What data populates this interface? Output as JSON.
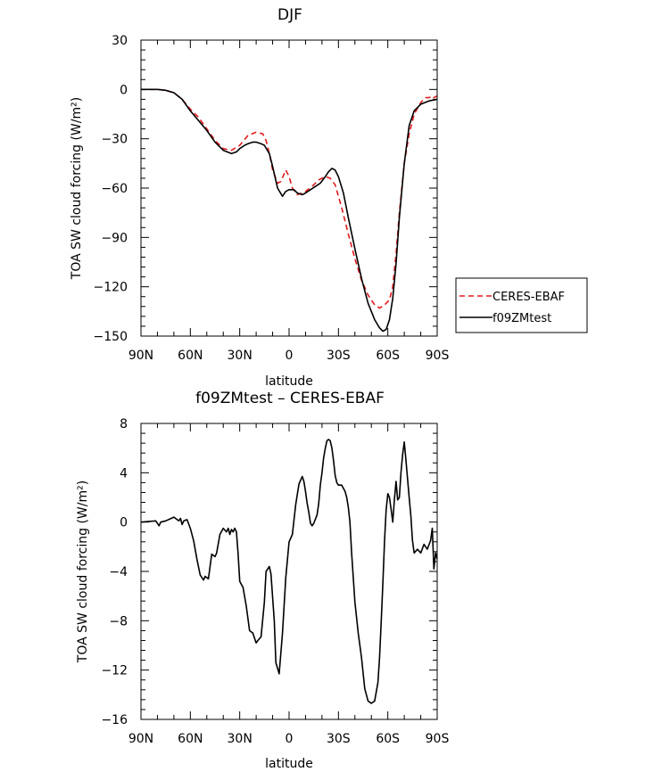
{
  "chart_data": [
    {
      "type": "line",
      "title": "DJF",
      "xlabel": "latitude",
      "ylabel": "TOA SW cloud forcing (W/m²)",
      "ylim": [
        -150,
        30
      ],
      "yticks": [
        30,
        0,
        -30,
        -60,
        -90,
        -120,
        -150
      ],
      "ytick_labels": [
        "30",
        "0",
        "−30",
        "−60",
        "−90",
        "−120",
        "−150"
      ],
      "xlim": [
        90,
        -90
      ],
      "xticks": [
        90,
        60,
        30,
        0,
        -30,
        -60,
        -90
      ],
      "xtick_labels": [
        "90N",
        "60N",
        "30N",
        "0",
        "30S",
        "60S",
        "90S"
      ],
      "legend": "right",
      "series": [
        {
          "name": "CERES-EBAF",
          "color": "#e31a1c",
          "dash": "dashed",
          "x": [
            90,
            80,
            75,
            70,
            65,
            60,
            55,
            50,
            45,
            40,
            35,
            30,
            25,
            20,
            16,
            14,
            12,
            10,
            7,
            5,
            2,
            0,
            -2,
            -5,
            -8,
            -10,
            -14,
            -18,
            -22,
            -25,
            -28,
            -32,
            -36,
            -40,
            -44,
            -48,
            -52,
            -55,
            -58,
            -61,
            -63,
            -65,
            -67,
            -70,
            -73,
            -76,
            -80,
            -83,
            -85,
            -87,
            -88,
            -90
          ],
          "y": [
            0,
            0,
            -0.5,
            -2,
            -6,
            -12,
            -17,
            -24,
            -31,
            -36,
            -37,
            -34,
            -28,
            -26,
            -27,
            -31,
            -39,
            -49,
            -57,
            -56,
            -49,
            -53,
            -60,
            -64,
            -63,
            -62,
            -59,
            -55,
            -53,
            -54,
            -58,
            -72,
            -88,
            -103,
            -116,
            -125,
            -131,
            -133,
            -131,
            -128,
            -120,
            -100,
            -75,
            -45,
            -27,
            -15,
            -8,
            -5,
            -5,
            -4,
            -5,
            -4
          ]
        },
        {
          "name": "f09ZMtest",
          "color": "#000000",
          "dash": "solid",
          "x": [
            90,
            80,
            75,
            70,
            65,
            60,
            55,
            50,
            45,
            40,
            35,
            32,
            30,
            27,
            25,
            22,
            20,
            17,
            15,
            12,
            10,
            7,
            4,
            2,
            0,
            -3,
            -5,
            -8,
            -10,
            -13,
            -16,
            -19,
            -22,
            -24,
            -26,
            -28,
            -30,
            -33,
            -36,
            -40,
            -44,
            -48,
            -52,
            -55,
            -57,
            -59,
            -61,
            -63,
            -65,
            -67,
            -70,
            -73,
            -76,
            -80,
            -85,
            -90
          ],
          "y": [
            0,
            0,
            -0.5,
            -2,
            -6,
            -13,
            -19,
            -25,
            -32,
            -37,
            -39,
            -38,
            -36,
            -34,
            -33,
            -32,
            -32,
            -33,
            -34,
            -39,
            -47,
            -60,
            -65,
            -62,
            -61,
            -61,
            -63,
            -64,
            -63,
            -61,
            -59,
            -57,
            -53,
            -50,
            -48,
            -49,
            -53,
            -63,
            -78,
            -97,
            -115,
            -130,
            -140,
            -145,
            -147,
            -146,
            -140,
            -127,
            -106,
            -78,
            -45,
            -22,
            -13,
            -9,
            -7,
            -6
          ]
        }
      ]
    },
    {
      "type": "line",
      "title": "f09ZMtest – CERES-EBAF",
      "xlabel": "latitude",
      "ylabel": "TOA SW cloud forcing (W/m²)",
      "ylim": [
        -16,
        8
      ],
      "yticks": [
        8,
        4,
        0,
        -4,
        -8,
        -12,
        -16
      ],
      "ytick_labels": [
        "8",
        "4",
        "0",
        "−4",
        "−8",
        "−12",
        "−16"
      ],
      "xlim": [
        90,
        -90
      ],
      "xticks": [
        90,
        60,
        30,
        0,
        -30,
        -60,
        -90
      ],
      "xtick_labels": [
        "90N",
        "60N",
        "30N",
        "0",
        "30S",
        "60S",
        "90S"
      ],
      "series": [
        {
          "name": "f09ZMtest – CERES-EBAF",
          "color": "#000000",
          "dash": "solid",
          "x": [
            90,
            81,
            79,
            78,
            75,
            70,
            67,
            66,
            65,
            64,
            62,
            60,
            58,
            56,
            54,
            52,
            51,
            49,
            47,
            45,
            44,
            42,
            40,
            38,
            37,
            36,
            35,
            34,
            33,
            32,
            31,
            30,
            28,
            26,
            24,
            22,
            20,
            19,
            17,
            15,
            14,
            12,
            11,
            9,
            8,
            6,
            4,
            2,
            0,
            -2,
            -4,
            -6,
            -8,
            -9,
            -10,
            -11,
            -12,
            -13,
            -14,
            -15,
            -17,
            -18,
            -19,
            -20,
            -21,
            -22,
            -23,
            -24,
            -25,
            -26,
            -27,
            -28,
            -29,
            -30,
            -32,
            -34,
            -35,
            -36,
            -37,
            -38,
            -40,
            -42,
            -44,
            -46,
            -48,
            -50,
            -52,
            -54,
            -55,
            -56,
            -57,
            -58,
            -59,
            -60,
            -61,
            -62,
            -63,
            -64,
            -65,
            -66,
            -67,
            -68,
            -69,
            -70,
            -71,
            -72,
            -73,
            -74,
            -75,
            -76,
            -78,
            -80,
            -82,
            -84,
            -86,
            -87,
            -88,
            -89,
            -90
          ],
          "y": [
            0,
            0.1,
            -0.3,
            0,
            0.1,
            0.4,
            0.1,
            0.3,
            -0.2,
            0.1,
            0.2,
            -0.5,
            -1.5,
            -3,
            -4.3,
            -4.7,
            -4.4,
            -4.6,
            -2.6,
            -2.8,
            -2.5,
            -1,
            -0.5,
            -0.8,
            -0.5,
            -1,
            -0.6,
            -0.8,
            -0.5,
            -0.8,
            -2.5,
            -4.8,
            -5.3,
            -6.8,
            -8.8,
            -9,
            -9.8,
            -9.6,
            -9.3,
            -6.5,
            -4,
            -3.6,
            -4.2,
            -8,
            -11.4,
            -12.3,
            -9,
            -4.5,
            -1.6,
            -1,
            1.4,
            3.1,
            3.7,
            3.3,
            2.5,
            1.5,
            0.8,
            -0.1,
            -0.3,
            -0.1,
            0.6,
            1.5,
            3,
            4,
            5.2,
            6,
            6.6,
            6.7,
            6.6,
            6,
            5,
            3.8,
            3.2,
            3,
            3,
            2.5,
            2,
            1.2,
            0,
            -2.5,
            -6.5,
            -9,
            -11,
            -13.5,
            -14.5,
            -14.7,
            -14.5,
            -13,
            -11,
            -8,
            -5,
            -1.5,
            1,
            2.3,
            2,
            1,
            0,
            1.8,
            3.3,
            1.8,
            2,
            4,
            5.5,
            6.5,
            5,
            3.5,
            2,
            0.5,
            -1.5,
            -2.5,
            -2.2,
            -2.5,
            -1.8,
            -2.2,
            -1.5,
            -0.5,
            -3.8,
            -2.5,
            -3
          ]
        }
      ]
    }
  ]
}
